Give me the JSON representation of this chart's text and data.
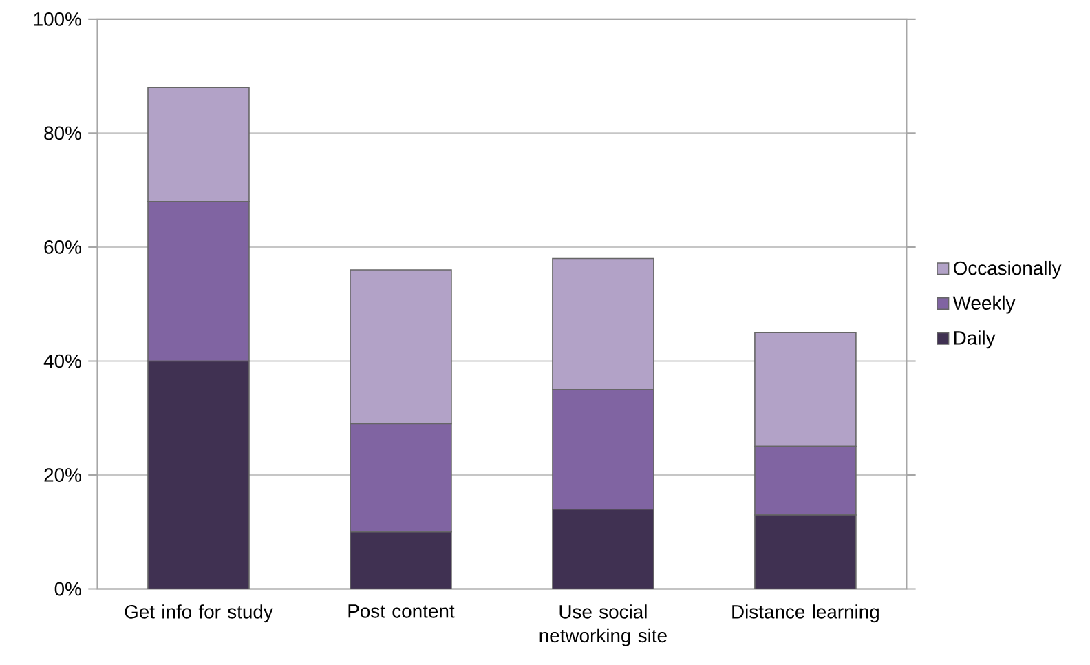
{
  "chart_data": {
    "type": "bar",
    "stacked": true,
    "categories": [
      "Get info for study",
      "Post content",
      "Use social networking site",
      "Distance learning"
    ],
    "series": [
      {
        "name": "Daily",
        "color": "#403152",
        "values": [
          40,
          10,
          14,
          13
        ]
      },
      {
        "name": "Weekly",
        "color": "#8064a2",
        "values": [
          28,
          19,
          21,
          12
        ]
      },
      {
        "name": "Occasionally",
        "color": "#b2a2c7",
        "values": [
          20,
          27,
          23,
          20
        ]
      }
    ],
    "ylim": [
      0,
      100
    ],
    "yticks": [
      {
        "value": 0,
        "label": "0%"
      },
      {
        "value": 20,
        "label": "20%"
      },
      {
        "value": 40,
        "label": "40%"
      },
      {
        "value": 60,
        "label": "60%"
      },
      {
        "value": 80,
        "label": "80%"
      },
      {
        "value": 100,
        "label": "100%"
      }
    ],
    "grid": "y",
    "legend": "right"
  }
}
